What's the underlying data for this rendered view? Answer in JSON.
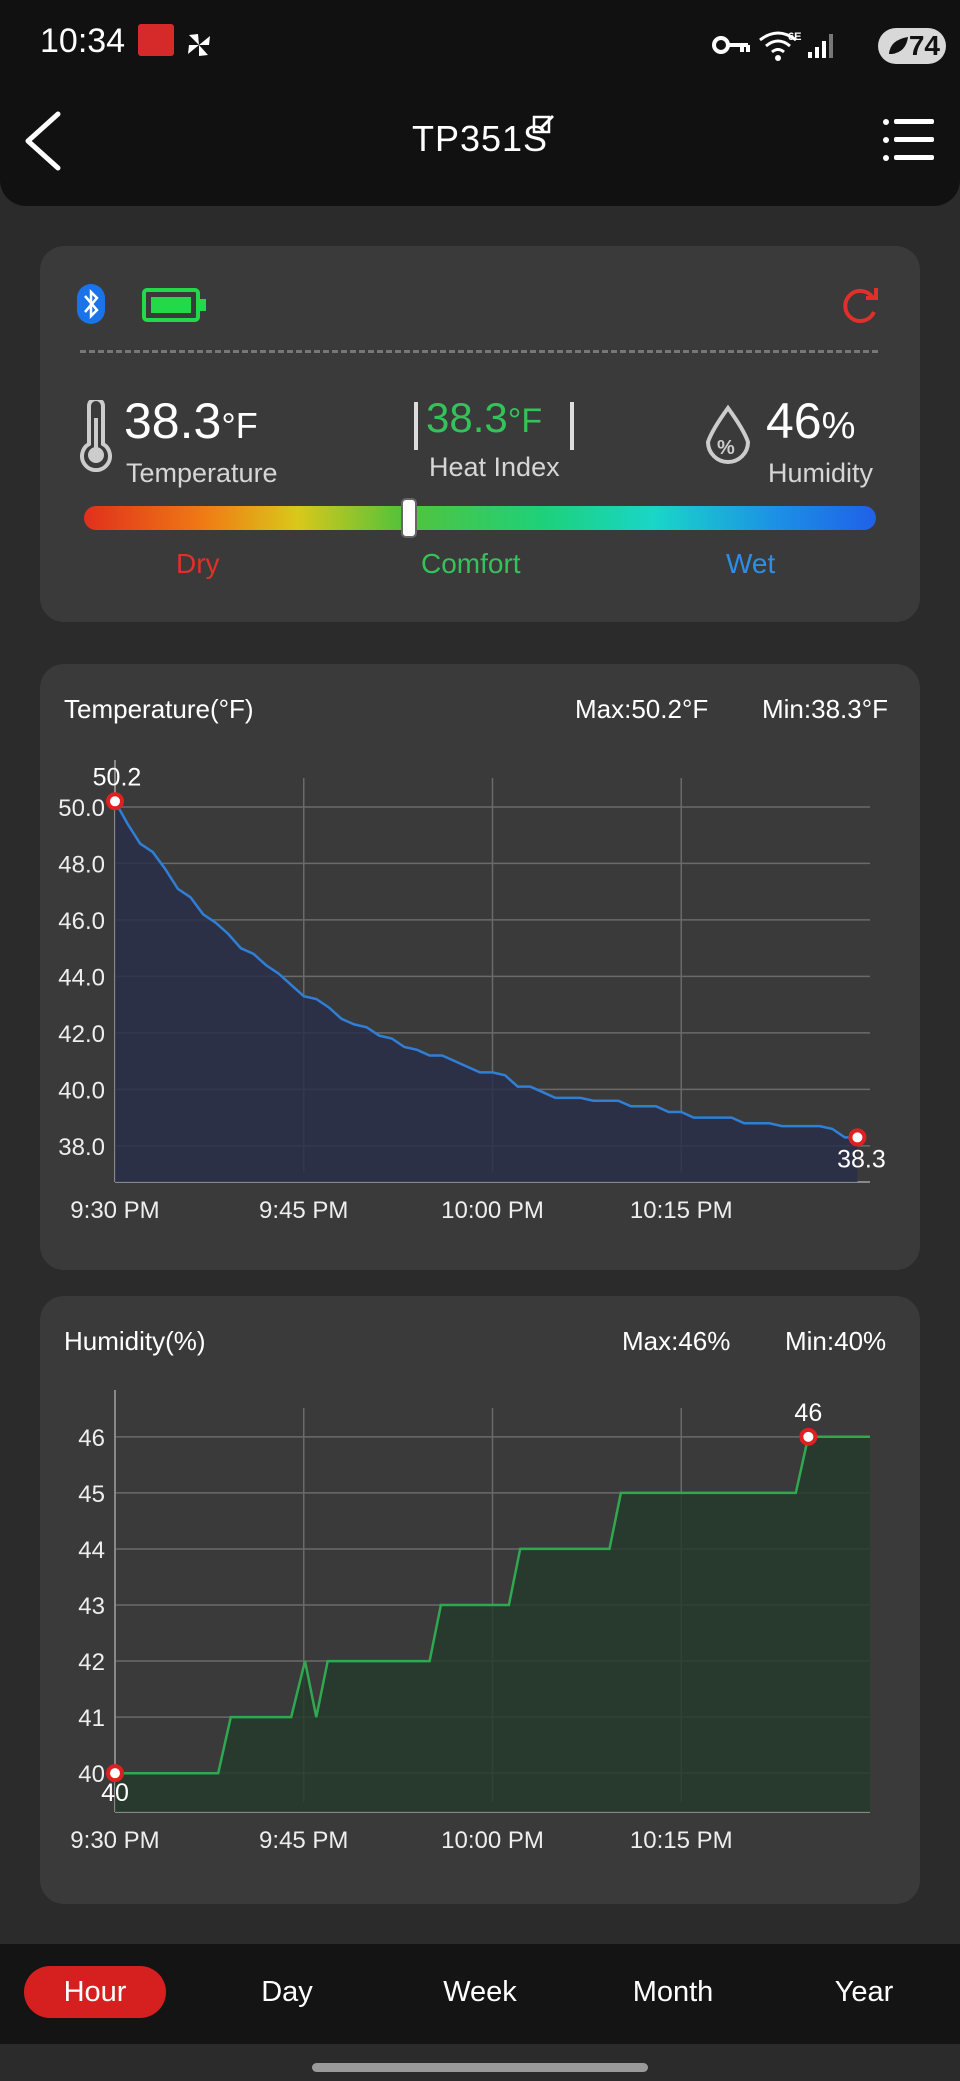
{
  "status_bar": {
    "time": "10:34",
    "battery_level": "74",
    "wifi_label": "6E"
  },
  "header": {
    "title": "TP351S"
  },
  "status_card": {
    "temperature_value": "38.3",
    "temperature_unit": "°F",
    "temperature_label": "Temperature",
    "heat_index_value": "38.3",
    "heat_index_unit": "°F",
    "heat_index_label": "Heat Index",
    "humidity_value": "46",
    "humidity_unit": "%",
    "humidity_label": "Humidity",
    "humidity_icon_glyph": "%",
    "scale_labels": {
      "dry": "Dry",
      "comfort": "Comfort",
      "wet": "Wet"
    },
    "comfort_level": 0.41,
    "colors": {
      "dry": "#e0302a",
      "comfort": "#36c25a",
      "wet": "#2d8ee8",
      "heat_index": "#36c25a",
      "battery": "#22d94a",
      "bluetooth": "#1a73e8",
      "refresh": "#e0302a"
    }
  },
  "chart_data": [
    {
      "type": "area",
      "title": "Temperature(°F)",
      "max_label": "Max:50.2°F",
      "min_label": "Min:38.3°F",
      "ylim": [
        37.5,
        50.6
      ],
      "y_ticks": [
        "50.0",
        "48.0",
        "46.0",
        "44.0",
        "42.0",
        "40.0",
        "38.0"
      ],
      "x_ticks": [
        "9:30 PM",
        "9:45 PM",
        "10:00 PM",
        "10:15 PM"
      ],
      "x_unit": "minutes after 9:30 PM",
      "xlim": [
        0,
        60
      ],
      "x": [
        0,
        1,
        2,
        3,
        4,
        5,
        6,
        7,
        8,
        9,
        10,
        11,
        12,
        13,
        14,
        15,
        16,
        17,
        18,
        19,
        20,
        21,
        22,
        23,
        24,
        25,
        26,
        27,
        28,
        29,
        30,
        31,
        32,
        33,
        34,
        35,
        36,
        37,
        38,
        39,
        40,
        41,
        42,
        43,
        44,
        45,
        46,
        47,
        48,
        49,
        50,
        51,
        52,
        53,
        54,
        55,
        56,
        57,
        58,
        59
      ],
      "values": [
        50.2,
        49.4,
        48.7,
        48.4,
        47.8,
        47.1,
        46.8,
        46.2,
        45.9,
        45.5,
        45.0,
        44.8,
        44.4,
        44.1,
        43.7,
        43.3,
        43.2,
        42.9,
        42.5,
        42.3,
        42.2,
        41.9,
        41.8,
        41.5,
        41.4,
        41.2,
        41.2,
        41.0,
        40.8,
        40.6,
        40.6,
        40.5,
        40.1,
        40.1,
        39.9,
        39.7,
        39.7,
        39.7,
        39.6,
        39.6,
        39.6,
        39.4,
        39.4,
        39.4,
        39.2,
        39.2,
        39.0,
        39.0,
        39.0,
        39.0,
        38.8,
        38.8,
        38.8,
        38.7,
        38.7,
        38.7,
        38.7,
        38.6,
        38.3,
        38.3
      ],
      "start_label": "50.2",
      "end_label": "38.3",
      "color": "#2f7fd6",
      "fill": "#2a2f4a",
      "grid": true
    },
    {
      "type": "area",
      "title": "Humidity(%)",
      "max_label": "Max:46%",
      "min_label": "Min:40%",
      "ylim": [
        39.7,
        46.3
      ],
      "y_ticks": [
        "46",
        "45",
        "44",
        "43",
        "42",
        "41",
        "40"
      ],
      "x_ticks": [
        "9:30 PM",
        "9:45 PM",
        "10:00 PM",
        "10:15 PM"
      ],
      "x_unit": "minutes after 9:30 PM",
      "xlim": [
        0,
        60
      ],
      "points": [
        [
          0,
          40
        ],
        [
          8.2,
          40
        ],
        [
          9.2,
          41
        ],
        [
          14,
          41
        ],
        [
          15.1,
          42
        ],
        [
          16,
          41
        ],
        [
          16.9,
          42
        ],
        [
          25,
          42
        ],
        [
          25.9,
          43
        ],
        [
          31.3,
          43
        ],
        [
          32.2,
          44
        ],
        [
          39.3,
          44
        ],
        [
          40.2,
          45
        ],
        [
          54.1,
          45
        ],
        [
          55.1,
          46
        ],
        [
          60,
          46
        ]
      ],
      "start_label": "40",
      "end_label": "46",
      "start_point": [
        0,
        40
      ],
      "end_point": [
        55.1,
        46
      ],
      "color": "#2fa84f",
      "fill": "#263a2c",
      "grid": true
    }
  ],
  "bottom_nav": {
    "tabs": [
      "Hour",
      "Day",
      "Week",
      "Month",
      "Year"
    ],
    "selected": "Hour"
  }
}
